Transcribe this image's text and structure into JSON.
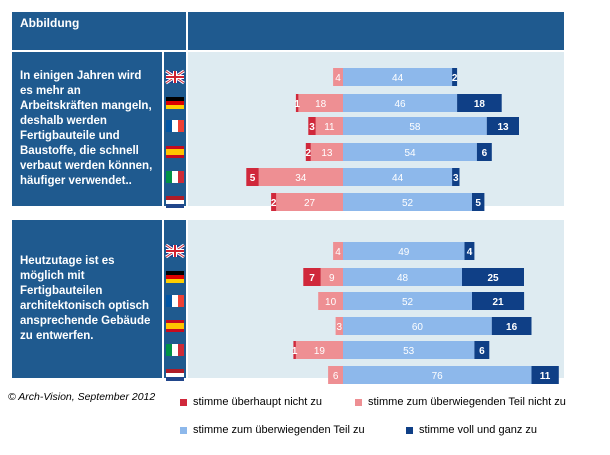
{
  "header": {
    "title": "Abbildung"
  },
  "credit": "© Arch-Vision, September 2012",
  "colors": {
    "header_bg": "#1f5a8f",
    "plot_bg": "#deebf1",
    "not_at_all": "#d0283b",
    "mostly_not": "#ee8f93",
    "mostly": "#8db8eb",
    "fully": "#0f3f86"
  },
  "legend": [
    {
      "key": "not_at_all",
      "label": "stimme überhaupt nicht zu"
    },
    {
      "key": "mostly_not",
      "label": "stimme zum überwiegenden  Teil nicht zu"
    },
    {
      "key": "mostly",
      "label": "stimme zum überwiegenden  Teil zu"
    },
    {
      "key": "fully",
      "label": "stimme voll und ganz zu"
    }
  ],
  "chart_data": {
    "type": "bar",
    "stacking": "diverging",
    "countries": [
      "uk-flag-icon",
      "germany-flag-icon",
      "france-flag-icon",
      "spain-flag-icon",
      "italy-flag-icon",
      "netherlands-flag-icon"
    ],
    "groups": [
      {
        "statement": "In einigen Jahren wird es mehr an Arbeitskräften mangeln, deshalb werden Fertigbauteile und Baustoffe, die schnell verbaut werden können, häufiger verwendet..",
        "rows": [
          {
            "not_at_all": 0,
            "mostly_not": 4,
            "mostly": 44,
            "fully": 2
          },
          {
            "not_at_all": 1,
            "mostly_not": 18,
            "mostly": 46,
            "fully": 18
          },
          {
            "not_at_all": 3,
            "mostly_not": 11,
            "mostly": 58,
            "fully": 13
          },
          {
            "not_at_all": 2,
            "mostly_not": 13,
            "mostly": 54,
            "fully": 6
          },
          {
            "not_at_all": 5,
            "mostly_not": 34,
            "mostly": 44,
            "fully": 3
          },
          {
            "not_at_all": 2,
            "mostly_not": 27,
            "mostly": 52,
            "fully": 5
          }
        ]
      },
      {
        "statement": "Heutzutage ist es möglich mit Fertigbauteilen architektonisch optisch ansprechende Gebäude zu entwerfen.",
        "rows": [
          {
            "not_at_all": 0,
            "mostly_not": 4,
            "mostly": 49,
            "fully": 4
          },
          {
            "not_at_all": 7,
            "mostly_not": 9,
            "mostly": 48,
            "fully": 25
          },
          {
            "not_at_all": 0,
            "mostly_not": 10,
            "mostly": 52,
            "fully": 21
          },
          {
            "not_at_all": 0,
            "mostly_not": 3,
            "mostly": 60,
            "fully": 16
          },
          {
            "not_at_all": 1,
            "mostly_not": 19,
            "mostly": 53,
            "fully": 6
          },
          {
            "not_at_all": 0,
            "mostly_not": 6,
            "mostly": 76,
            "fully": 11
          }
        ]
      }
    ]
  }
}
